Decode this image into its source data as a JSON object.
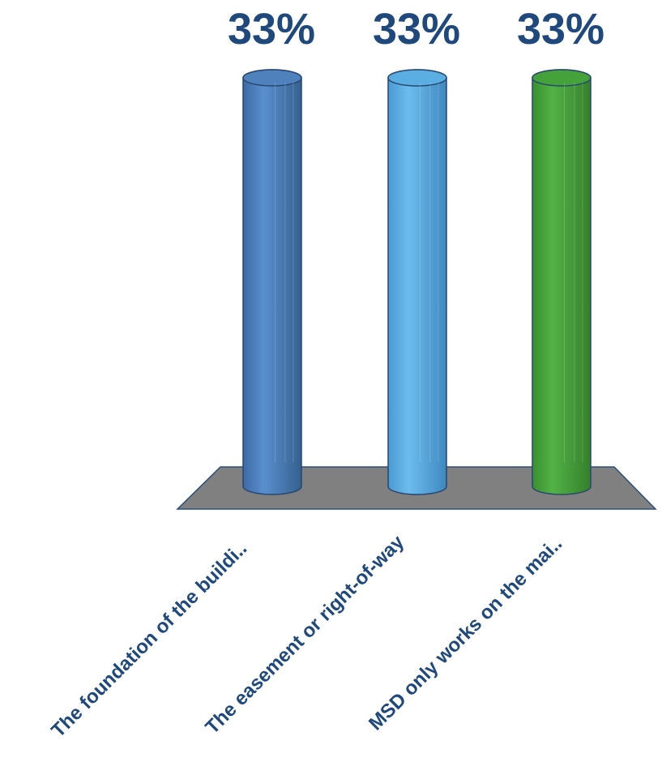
{
  "chart_data": {
    "type": "bar",
    "categories": [
      "The foundation of the buildi..",
      "The easement or right-of-way",
      "MSD only works on the mai.."
    ],
    "values": [
      33,
      33,
      33
    ],
    "value_labels": [
      "33%",
      "33%",
      "33%"
    ],
    "colors": [
      "#4f81bd",
      "#5aaee2",
      "#45a23a"
    ],
    "floor_color": "#808080",
    "ylim": [
      0,
      33
    ],
    "grid": false,
    "legend": "none",
    "style": "3d-cylinder"
  }
}
